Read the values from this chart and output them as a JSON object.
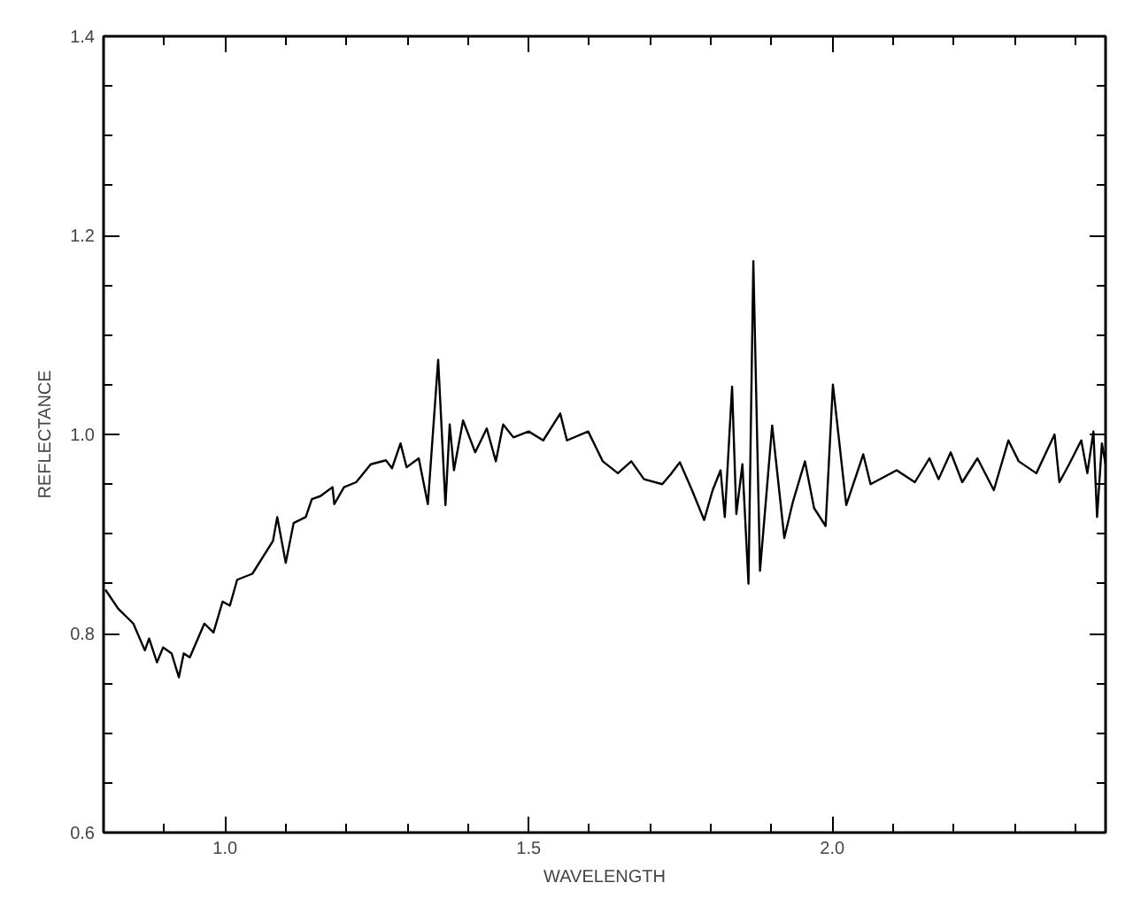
{
  "chart_data": {
    "type": "line",
    "xlabel": "WAVELENGTH",
    "ylabel": "REFLECTANCE",
    "xlim": [
      0.8,
      2.45
    ],
    "ylim": [
      0.6,
      1.4
    ],
    "xticks": [
      {
        "value": 0.9,
        "label": null
      },
      {
        "value": 1.0,
        "label": "1.0"
      },
      {
        "value": 1.1,
        "label": null
      },
      {
        "value": 1.2,
        "label": null
      },
      {
        "value": 1.3,
        "label": null
      },
      {
        "value": 1.4,
        "label": null
      },
      1.5,
      {
        "value": 1.6,
        "label": null
      },
      {
        "value": 1.7,
        "label": null
      },
      {
        "value": 1.8,
        "label": null
      },
      {
        "value": 1.9,
        "label": null
      },
      {
        "value": 2.0,
        "label": "2.0"
      },
      {
        "value": 2.1,
        "label": null
      },
      {
        "value": 2.2,
        "label": null
      },
      {
        "value": 2.3,
        "label": null
      },
      {
        "value": 2.4,
        "label": null
      }
    ],
    "yticks": [
      0.6,
      {
        "value": 0.65,
        "label": null
      },
      {
        "value": 0.7,
        "label": null
      },
      {
        "value": 0.75,
        "label": null
      },
      0.8,
      {
        "value": 0.85,
        "label": null
      },
      {
        "value": 0.9,
        "label": null
      },
      {
        "value": 0.95,
        "label": null
      },
      {
        "value": 1.0,
        "label": "1.0"
      },
      {
        "value": 1.05,
        "label": null
      },
      {
        "value": 1.1,
        "label": null
      },
      {
        "value": 1.15,
        "label": null
      },
      1.2,
      {
        "value": 1.25,
        "label": null
      },
      {
        "value": 1.3,
        "label": null
      },
      {
        "value": 1.35,
        "label": null
      },
      1.4
    ],
    "marker": "none",
    "line_style": "solid",
    "series": [
      {
        "color": "#000000",
        "x": [
          0.803,
          0.824,
          0.849,
          0.868,
          0.875,
          0.888,
          0.898,
          0.912,
          0.924,
          0.932,
          0.942,
          0.966,
          0.981,
          0.996,
          1.008,
          1.02,
          1.045,
          1.079,
          1.086,
          1.1,
          1.113,
          1.133,
          1.143,
          1.157,
          1.177,
          1.18,
          1.196,
          1.216,
          1.24,
          1.265,
          1.275,
          1.289,
          1.299,
          1.319,
          1.334,
          1.351,
          1.363,
          1.37,
          1.377,
          1.392,
          1.412,
          1.431,
          1.446,
          1.458,
          1.475,
          1.5,
          1.524,
          1.552,
          1.563,
          1.598,
          1.622,
          1.647,
          1.669,
          1.69,
          1.72,
          1.734,
          1.749,
          1.769,
          1.789,
          1.803,
          1.816,
          1.823,
          1.835,
          1.842,
          1.852,
          1.862,
          1.87,
          1.881,
          1.901,
          1.921,
          1.935,
          1.955,
          1.97,
          1.989,
          2.001,
          2.023,
          2.051,
          2.063,
          2.106,
          2.136,
          2.16,
          2.175,
          2.195,
          2.214,
          2.239,
          2.266,
          2.29,
          2.307,
          2.336,
          2.366,
          2.374,
          2.39,
          2.41,
          2.42,
          2.43,
          2.436,
          2.444,
          2.45
        ],
        "values": [
          0.844,
          0.825,
          0.81,
          0.783,
          0.795,
          0.771,
          0.786,
          0.78,
          0.756,
          0.78,
          0.776,
          0.81,
          0.801,
          0.832,
          0.828,
          0.854,
          0.86,
          0.893,
          0.917,
          0.871,
          0.911,
          0.917,
          0.935,
          0.938,
          0.947,
          0.93,
          0.947,
          0.952,
          0.97,
          0.974,
          0.966,
          0.991,
          0.967,
          0.976,
          0.93,
          1.075,
          0.929,
          1.01,
          0.964,
          1.014,
          0.982,
          1.006,
          0.973,
          1.01,
          0.997,
          1.003,
          0.994,
          1.021,
          0.994,
          1.003,
          0.973,
          0.961,
          0.973,
          0.955,
          0.95,
          0.96,
          0.972,
          0.944,
          0.914,
          0.944,
          0.964,
          0.917,
          1.048,
          0.92,
          0.97,
          0.85,
          1.174,
          0.863,
          1.009,
          0.896,
          0.932,
          0.973,
          0.926,
          0.908,
          1.05,
          0.929,
          0.98,
          0.95,
          0.964,
          0.952,
          0.976,
          0.955,
          0.982,
          0.952,
          0.976,
          0.944,
          0.994,
          0.973,
          0.961,
          1.0,
          0.952,
          0.97,
          0.994,
          0.961,
          1.003,
          0.917,
          0.991,
          0.97
        ]
      }
    ]
  }
}
